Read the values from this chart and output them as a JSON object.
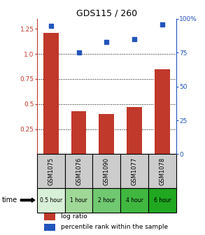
{
  "title": "GDS115 / 260",
  "samples": [
    "GSM1075",
    "GSM1076",
    "GSM1090",
    "GSM1077",
    "GSM1078"
  ],
  "time_labels": [
    "0.5 hour",
    "1 hour",
    "2 hour",
    "4 hour",
    "6 hour"
  ],
  "log_ratio": [
    1.21,
    0.43,
    0.4,
    0.47,
    0.85
  ],
  "percentile_rank": [
    0.95,
    0.75,
    0.83,
    0.85,
    0.96
  ],
  "bar_color": "#c0392b",
  "point_color": "#2255bb",
  "left_ylim": [
    0,
    1.35
  ],
  "left_yticks": [
    0.25,
    0.5,
    0.75,
    1.0,
    1.25
  ],
  "right_yticks": [
    0,
    25,
    50,
    75,
    100
  ],
  "right_yticklabels": [
    "0",
    "25",
    "50",
    "75",
    "100%"
  ],
  "dotted_lines": [
    0.25,
    0.5,
    0.75,
    1.0
  ],
  "time_bg": [
    "#d8f0d8",
    "#a0d898",
    "#70c870",
    "#40b840",
    "#20a820"
  ],
  "sample_bg_color": "#cccccc",
  "legend_labels": [
    "log ratio",
    "percentile rank within the sample"
  ]
}
